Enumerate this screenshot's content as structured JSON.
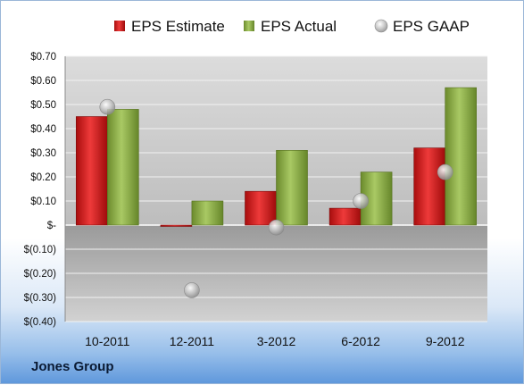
{
  "chart_data": {
    "type": "bar",
    "categories": [
      "10-2011",
      "12-2011",
      "3-2012",
      "6-2012",
      "9-2012"
    ],
    "series": [
      {
        "name": "EPS Estimate",
        "kind": "bar",
        "color": "#d42020",
        "values": [
          0.45,
          0.0,
          0.14,
          0.07,
          0.32
        ]
      },
      {
        "name": "EPS Actual",
        "kind": "bar",
        "color": "#8db048",
        "values": [
          0.48,
          0.1,
          0.31,
          0.22,
          0.57
        ]
      },
      {
        "name": "EPS GAAP",
        "kind": "marker",
        "color": "#b4b4b4",
        "values": [
          0.49,
          -0.27,
          -0.01,
          0.1,
          0.22
        ]
      }
    ],
    "yticks": [
      {
        "value": 0.7,
        "label": "$0.70"
      },
      {
        "value": 0.6,
        "label": "$0.60"
      },
      {
        "value": 0.5,
        "label": "$0.50"
      },
      {
        "value": 0.4,
        "label": "$0.40"
      },
      {
        "value": 0.3,
        "label": "$0.30"
      },
      {
        "value": 0.2,
        "label": "$0.20"
      },
      {
        "value": 0.1,
        "label": "$0.10"
      },
      {
        "value": 0.0,
        "label": "$-"
      },
      {
        "value": -0.1,
        "label": "$(0.10)"
      },
      {
        "value": -0.2,
        "label": "$(0.20)"
      },
      {
        "value": -0.3,
        "label": "$(0.30)"
      },
      {
        "value": -0.4,
        "label": "$(0.40)"
      }
    ],
    "ylim": [
      -0.4,
      0.7
    ],
    "grid": true,
    "legend_position": "top"
  },
  "company_name": "Jones Group"
}
